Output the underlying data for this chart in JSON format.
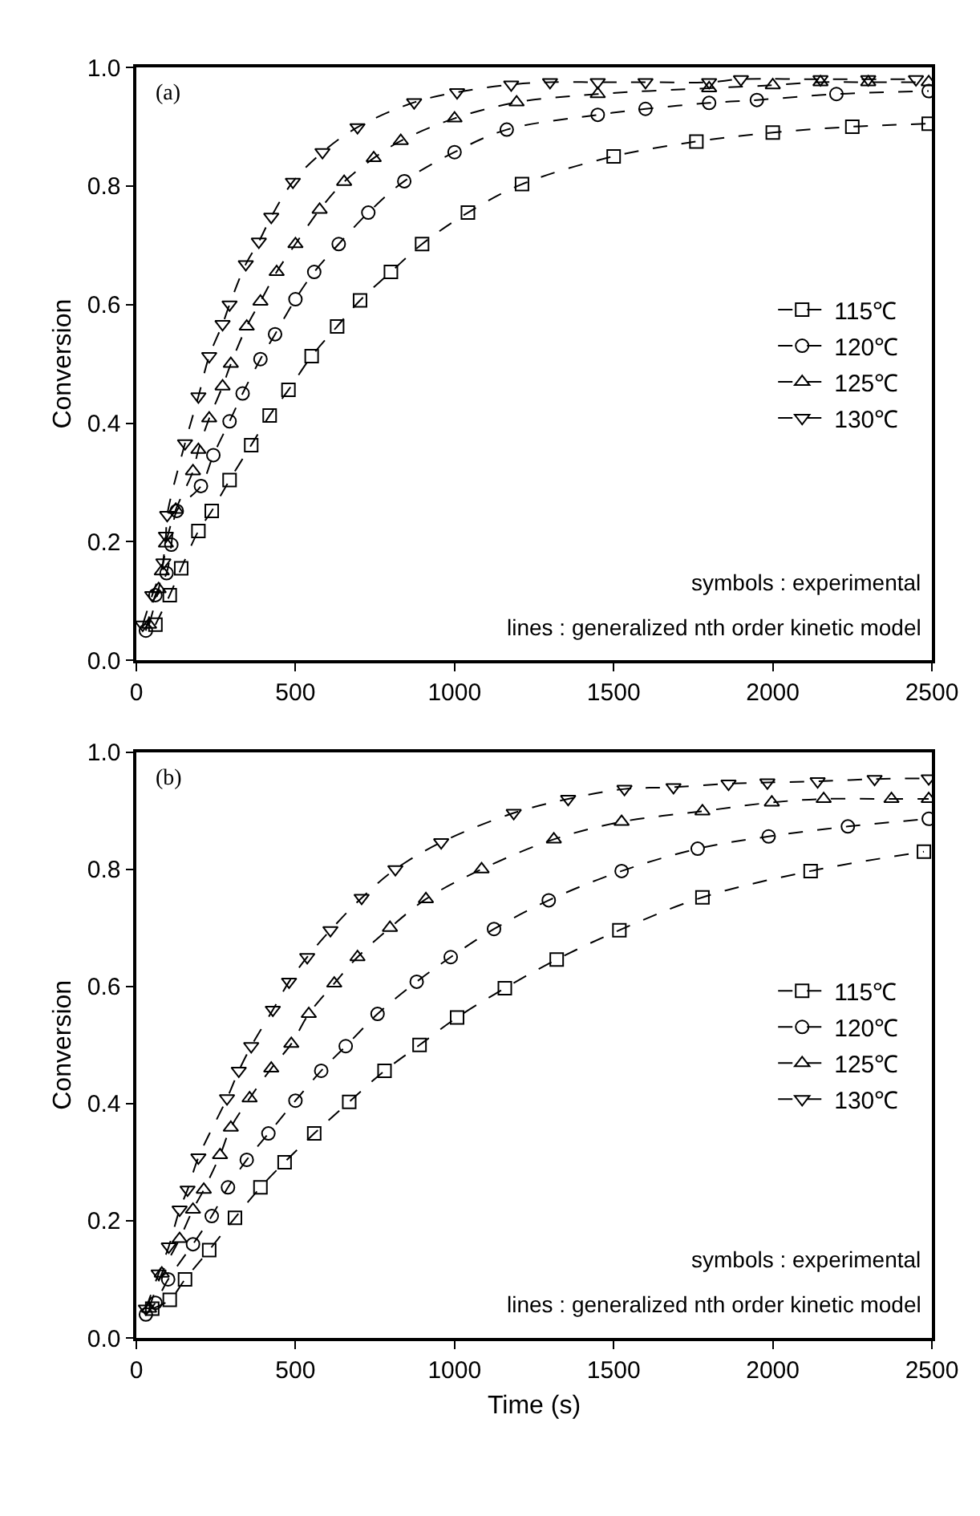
{
  "chart_data": [
    {
      "type": "line",
      "ylabel": "Conversion",
      "annotations": [
        "(a)",
        "symbols : experimental",
        "lines : generalized nth order kinetic model"
      ],
      "legend": "right",
      "line_style": "dashed",
      "xlim": [
        0,
        2500
      ],
      "xticks": [
        0,
        500,
        1000,
        1500,
        2000,
        2500
      ],
      "ylim": [
        0,
        1.0
      ],
      "yticks": [
        {
          "value": 0,
          "label": "0.0"
        },
        {
          "value": 0.2,
          "label": "0.2"
        },
        {
          "value": 0.4,
          "label": "0.4"
        },
        {
          "value": 0.6,
          "label": "0.6"
        },
        {
          "value": 0.8,
          "label": "0.8"
        },
        {
          "value": 1.0,
          "label": "1.0"
        }
      ],
      "series": [
        {
          "name": "115℃",
          "color": "#000000",
          "marker": "square",
          "x": [
            60,
            105,
            141,
            195,
            237,
            293,
            361,
            419,
            478,
            551,
            631,
            703,
            800,
            898,
            1042,
            1212,
            1500,
            1760,
            2000,
            2250,
            2490
          ],
          "values": [
            0.06,
            0.11,
            0.155,
            0.218,
            0.252,
            0.304,
            0.363,
            0.413,
            0.456,
            0.513,
            0.563,
            0.607,
            0.655,
            0.702,
            0.755,
            0.803,
            0.85,
            0.875,
            0.89,
            0.9,
            0.905
          ]
        },
        {
          "name": "120℃",
          "color": "#000000",
          "marker": "circle",
          "x": [
            30,
            60,
            95,
            110,
            127,
            203,
            242,
            293,
            334,
            390,
            436,
            500,
            559,
            636,
            729,
            842,
            1000,
            1164,
            1450,
            1600,
            1800,
            1950,
            2200,
            2490
          ],
          "values": [
            0.05,
            0.11,
            0.147,
            0.195,
            0.252,
            0.294,
            0.346,
            0.403,
            0.45,
            0.508,
            0.55,
            0.609,
            0.655,
            0.702,
            0.755,
            0.808,
            0.857,
            0.895,
            0.92,
            0.93,
            0.94,
            0.945,
            0.955,
            0.96
          ]
        },
        {
          "name": "125℃",
          "color": "#000000",
          "marker": "triangle",
          "x": [
            40,
            70,
            80,
            93,
            124,
            178,
            195,
            229,
            271,
            297,
            347,
            390,
            441,
            500,
            576,
            653,
            746,
            831,
            1000,
            1195,
            1450,
            1800,
            2000,
            2150,
            2300,
            2490
          ],
          "values": [
            0.06,
            0.12,
            0.15,
            0.197,
            0.254,
            0.319,
            0.355,
            0.408,
            0.462,
            0.5,
            0.563,
            0.605,
            0.655,
            0.702,
            0.76,
            0.807,
            0.847,
            0.876,
            0.914,
            0.941,
            0.955,
            0.965,
            0.97,
            0.975,
            0.975,
            0.975
          ]
        },
        {
          "name": "130℃",
          "color": "#000000",
          "marker": "triangle-down",
          "x": [
            20,
            50,
            85,
            93,
            97,
            153,
            195,
            229,
            271,
            293,
            344,
            385,
            424,
            492,
            585,
            695,
            873,
            1008,
            1178,
            1300,
            1450,
            1600,
            1800,
            1900,
            2150,
            2300,
            2450
          ],
          "values": [
            0.06,
            0.11,
            0.165,
            0.21,
            0.245,
            0.366,
            0.445,
            0.513,
            0.567,
            0.6,
            0.668,
            0.706,
            0.748,
            0.807,
            0.857,
            0.899,
            0.941,
            0.958,
            0.971,
            0.975,
            0.975,
            0.975,
            0.975,
            0.98,
            0.98,
            0.98,
            0.98
          ]
        }
      ]
    },
    {
      "type": "line",
      "xlabel": "Time (s)",
      "ylabel": "Conversion",
      "annotations": [
        "(b)",
        "symbols : experimental",
        "lines : generalized nth order kinetic model"
      ],
      "legend": "right",
      "line_style": "dashed",
      "xlim": [
        0,
        2500
      ],
      "xticks": [
        0,
        500,
        1000,
        1500,
        2000,
        2500
      ],
      "ylim": [
        0,
        1.0
      ],
      "yticks": [
        {
          "value": 0,
          "label": "0.0"
        },
        {
          "value": 0.2,
          "label": "0.2"
        },
        {
          "value": 0.4,
          "label": "0.4"
        },
        {
          "value": 0.6,
          "label": "0.6"
        },
        {
          "value": 0.8,
          "label": "0.8"
        },
        {
          "value": 1.0,
          "label": "1.0"
        }
      ],
      "series": [
        {
          "name": "115℃",
          "color": "#000000",
          "marker": "square",
          "x": [
            50,
            105,
            153,
            229,
            310,
            390,
            466,
            559,
            669,
            780,
            890,
            1008,
            1158,
            1321,
            1518,
            1779,
            2119,
            2475
          ],
          "values": [
            0.05,
            0.065,
            0.1,
            0.15,
            0.205,
            0.257,
            0.3,
            0.349,
            0.403,
            0.456,
            0.5,
            0.547,
            0.597,
            0.646,
            0.696,
            0.752,
            0.797,
            0.83
          ]
        },
        {
          "name": "120℃",
          "color": "#000000",
          "marker": "circle",
          "x": [
            30,
            60,
            100,
            178,
            237,
            288,
            347,
            415,
            500,
            581,
            658,
            758,
            881,
            988,
            1124,
            1296,
            1525,
            1764,
            1987,
            2236,
            2490
          ],
          "values": [
            0.04,
            0.06,
            0.1,
            0.16,
            0.208,
            0.257,
            0.304,
            0.349,
            0.405,
            0.456,
            0.498,
            0.553,
            0.608,
            0.65,
            0.698,
            0.747,
            0.797,
            0.835,
            0.856,
            0.873,
            0.886
          ]
        },
        {
          "name": "125℃",
          "color": "#000000",
          "marker": "triangle",
          "x": [
            40,
            80,
            136,
            178,
            212,
            263,
            297,
            356,
            424,
            487,
            542,
            622,
            695,
            797,
            910,
            1085,
            1312,
            1525,
            1779,
            1997,
            2160,
            2373,
            2490
          ],
          "values": [
            0.05,
            0.11,
            0.169,
            0.219,
            0.253,
            0.312,
            0.359,
            0.409,
            0.46,
            0.502,
            0.553,
            0.605,
            0.65,
            0.7,
            0.749,
            0.8,
            0.851,
            0.881,
            0.899,
            0.914,
            0.92,
            0.92,
            0.92
          ]
        },
        {
          "name": "130℃",
          "color": "#000000",
          "marker": "triangle-down",
          "x": [
            30,
            70,
            102,
            136,
            161,
            195,
            285,
            322,
            361,
            429,
            480,
            537,
            610,
            708,
            814,
            958,
            1186,
            1357,
            1534,
            1688,
            1861,
            1983,
            2141,
            2320,
            2490
          ],
          "values": [
            0.05,
            0.11,
            0.156,
            0.219,
            0.253,
            0.308,
            0.409,
            0.456,
            0.498,
            0.56,
            0.608,
            0.65,
            0.696,
            0.751,
            0.8,
            0.846,
            0.896,
            0.92,
            0.937,
            0.94,
            0.946,
            0.948,
            0.95,
            0.954,
            0.955
          ]
        }
      ]
    }
  ]
}
